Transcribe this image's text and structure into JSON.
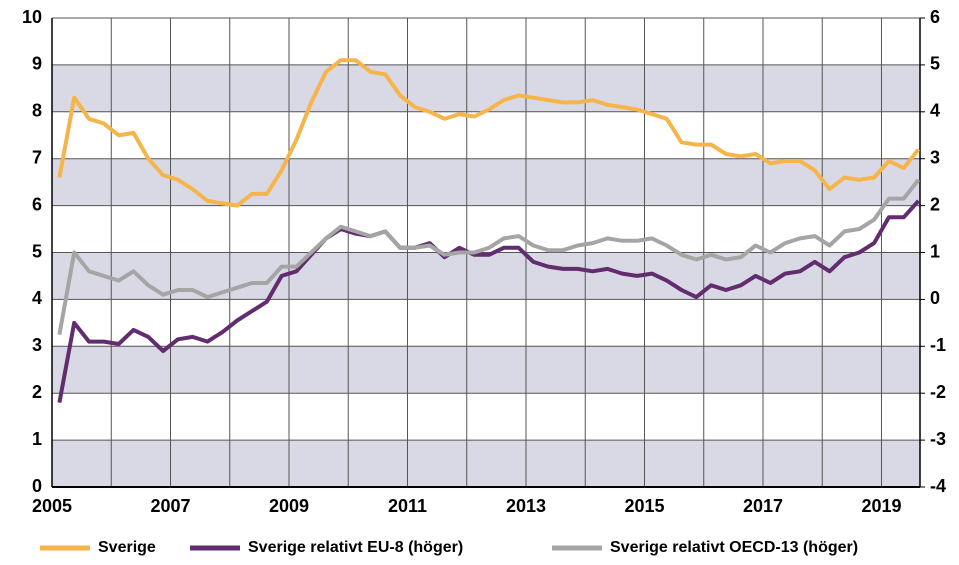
{
  "chart_data": {
    "type": "line",
    "x": [
      2005.125,
      2005.375,
      2005.625,
      2005.875,
      2006.125,
      2006.375,
      2006.625,
      2006.875,
      2007.125,
      2007.375,
      2007.625,
      2007.875,
      2008.125,
      2008.375,
      2008.625,
      2008.875,
      2009.125,
      2009.375,
      2009.625,
      2009.875,
      2010.125,
      2010.375,
      2010.625,
      2010.875,
      2011.125,
      2011.375,
      2011.625,
      2011.875,
      2012.125,
      2012.375,
      2012.625,
      2012.875,
      2013.125,
      2013.375,
      2013.625,
      2013.875,
      2014.125,
      2014.375,
      2014.625,
      2014.875,
      2015.125,
      2015.375,
      2015.625,
      2015.875,
      2016.125,
      2016.375,
      2016.625,
      2016.875,
      2017.125,
      2017.375,
      2017.625,
      2017.875,
      2018.125,
      2018.375,
      2018.625,
      2018.875,
      2019.125,
      2019.375,
      2019.625
    ],
    "series": [
      {
        "name": "Sverige",
        "color": "#f6b54a",
        "values": [
          6.6,
          8.3,
          7.85,
          7.75,
          7.5,
          7.55,
          7.0,
          6.65,
          6.55,
          6.35,
          6.1,
          6.05,
          6.0,
          6.25,
          6.25,
          6.75,
          7.4,
          8.2,
          8.85,
          9.1,
          9.1,
          8.85,
          8.8,
          8.35,
          8.1,
          8.0,
          7.85,
          7.95,
          7.9,
          8.05,
          8.25,
          8.35,
          8.3,
          8.25,
          8.2,
          8.2,
          8.25,
          8.15,
          8.1,
          8.05,
          7.95,
          7.85,
          7.35,
          7.3,
          7.3,
          7.1,
          7.05,
          7.1,
          6.9,
          6.95,
          6.95,
          6.75,
          6.35,
          6.6,
          6.55,
          6.6,
          6.95,
          6.8,
          7.2
        ]
      },
      {
        "name": "Sverige relativt EU-8 (höger)",
        "color": "#612d6e",
        "axis": "y2",
        "values": [
          -2.2,
          -0.5,
          -0.9,
          -0.9,
          -0.95,
          -0.65,
          -0.8,
          -1.1,
          -0.85,
          -0.8,
          -0.9,
          -0.7,
          -0.45,
          -0.25,
          -0.05,
          0.5,
          0.6,
          0.95,
          1.3,
          1.5,
          1.4,
          1.35,
          1.45,
          1.1,
          1.1,
          1.2,
          0.9,
          1.1,
          0.95,
          0.95,
          1.1,
          1.1,
          0.8,
          0.7,
          0.65,
          0.65,
          0.6,
          0.65,
          0.55,
          0.5,
          0.55,
          0.4,
          0.2,
          0.05,
          0.3,
          0.2,
          0.3,
          0.5,
          0.35,
          0.55,
          0.6,
          0.8,
          0.6,
          0.9,
          1.0,
          1.2,
          1.75,
          1.75,
          2.1
        ]
      },
      {
        "name": "Sverige relativt OECD-13 (höger)",
        "color": "#a5a5a5",
        "axis": "y2",
        "values": [
          -0.75,
          1.0,
          0.6,
          0.5,
          0.4,
          0.6,
          0.3,
          0.1,
          0.2,
          0.2,
          0.05,
          0.15,
          0.25,
          0.35,
          0.35,
          0.7,
          0.7,
          1.0,
          1.3,
          1.55,
          1.45,
          1.35,
          1.45,
          1.1,
          1.1,
          1.15,
          0.95,
          1.0,
          1.0,
          1.1,
          1.3,
          1.35,
          1.15,
          1.05,
          1.05,
          1.15,
          1.2,
          1.3,
          1.25,
          1.25,
          1.3,
          1.15,
          0.95,
          0.85,
          0.95,
          0.85,
          0.9,
          1.15,
          1.0,
          1.2,
          1.3,
          1.35,
          1.15,
          1.45,
          1.5,
          1.7,
          2.15,
          2.15,
          2.55
        ]
      }
    ],
    "xlim": [
      2005,
      2019.65
    ],
    "xticks": [
      2005,
      2007,
      2009,
      2011,
      2013,
      2015,
      2017,
      2019
    ],
    "xminorticks": [
      2006,
      2008,
      2010,
      2012,
      2014,
      2016,
      2018
    ],
    "ylim": [
      0,
      10
    ],
    "yticks": [
      0,
      1,
      2,
      3,
      4,
      5,
      6,
      7,
      8,
      9,
      10
    ],
    "y2lim": [
      -4,
      6
    ],
    "y2ticks": [
      -4,
      -3,
      -2,
      -1,
      0,
      1,
      2,
      3,
      4,
      5,
      6
    ],
    "grid": true,
    "band_color": "#d9d9e6",
    "legend": "bottom"
  }
}
